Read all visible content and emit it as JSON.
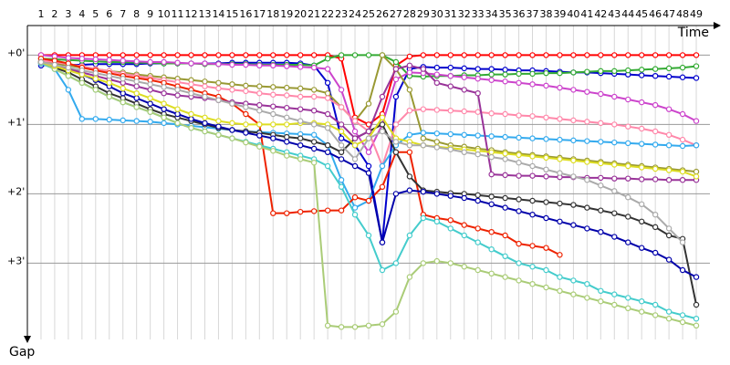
{
  "chart_data": {
    "type": "line",
    "xlabel": "Time",
    "ylabel": "Gap",
    "x": [
      1,
      2,
      3,
      4,
      5,
      6,
      7,
      8,
      9,
      10,
      11,
      12,
      13,
      14,
      15,
      16,
      17,
      18,
      19,
      20,
      21,
      22,
      23,
      24,
      25,
      26,
      27,
      28,
      29,
      30,
      31,
      32,
      33,
      34,
      35,
      36,
      37,
      38,
      39,
      40,
      41,
      42,
      43,
      44,
      45,
      46,
      47,
      48,
      49
    ],
    "xlim": [
      0,
      50
    ],
    "ylim": [
      -0.4,
      4.1
    ],
    "yticks": [
      {
        "value": 0,
        "label": "+0'"
      },
      {
        "value": 1,
        "label": "+1'"
      },
      {
        "value": 2,
        "label": "+2'"
      },
      {
        "value": 3,
        "label": "+3'"
      }
    ],
    "grid": true,
    "series": [
      {
        "color": "#ff0000",
        "values": [
          0,
          0,
          0,
          0,
          0,
          0,
          0,
          0,
          0,
          0,
          0,
          0,
          0,
          0,
          0,
          0,
          0,
          0,
          0,
          0,
          0,
          0,
          0.05,
          0.9,
          1.0,
          0.85,
          0.15,
          0.02,
          0,
          0,
          0,
          0,
          0,
          0,
          0,
          0,
          0,
          0,
          0,
          0,
          0,
          0,
          0,
          0,
          0,
          0,
          0,
          0,
          0
        ]
      },
      {
        "color": "#0000cc",
        "values": [
          0.15,
          0.14,
          0.14,
          0.14,
          0.13,
          0.13,
          0.13,
          0.13,
          0.12,
          0.12,
          0.12,
          0.12,
          0.12,
          0.12,
          0.11,
          0.11,
          0.11,
          0.11,
          0.11,
          0.12,
          0.15,
          0.4,
          1.2,
          1.3,
          1.6,
          2.7,
          0.6,
          0.2,
          0.17,
          0.18,
          0.18,
          0.19,
          0.2,
          0.2,
          0.21,
          0.22,
          0.22,
          0.23,
          0.24,
          0.25,
          0.25,
          0.26,
          0.27,
          0.28,
          0.29,
          0.3,
          0.31,
          0.32,
          0.33
        ]
      },
      {
        "color": "#33aa33",
        "values": [
          0.05,
          0.06,
          0.07,
          0.08,
          0.09,
          0.1,
          0.1,
          0.11,
          0.11,
          0.12,
          0.12,
          0.12,
          0.13,
          0.13,
          0.13,
          0.13,
          0.14,
          0.14,
          0.14,
          0.14,
          0.15,
          0.05,
          0,
          0,
          0,
          0,
          0.1,
          0.3,
          0.31,
          0.3,
          0.3,
          0.29,
          0.29,
          0.28,
          0.28,
          0.27,
          0.27,
          0.26,
          0.26,
          0.25,
          0.24,
          0.23,
          0.23,
          0.22,
          0.21,
          0.2,
          0.19,
          0.18,
          0.16
        ]
      },
      {
        "color": "#cc44cc",
        "values": [
          0,
          0.02,
          0.04,
          0.05,
          0.06,
          0.07,
          0.08,
          0.09,
          0.1,
          0.1,
          0.11,
          0.12,
          0.12,
          0.13,
          0.14,
          0.14,
          0.15,
          0.15,
          0.16,
          0.17,
          0.18,
          0.2,
          0.5,
          1.1,
          1.4,
          1.0,
          0.35,
          0.25,
          0.26,
          0.28,
          0.3,
          0.32,
          0.34,
          0.36,
          0.38,
          0.4,
          0.42,
          0.44,
          0.47,
          0.5,
          0.53,
          0.56,
          0.6,
          0.64,
          0.68,
          0.72,
          0.78,
          0.85,
          0.95
        ]
      },
      {
        "color": "#999933",
        "values": [
          0.1,
          0.12,
          0.15,
          0.18,
          0.2,
          0.23,
          0.25,
          0.28,
          0.3,
          0.32,
          0.34,
          0.36,
          0.38,
          0.4,
          0.42,
          0.44,
          0.45,
          0.46,
          0.47,
          0.48,
          0.5,
          0.55,
          0.75,
          0.95,
          0.7,
          0,
          0.2,
          0.5,
          1.2,
          1.25,
          1.3,
          1.32,
          1.35,
          1.37,
          1.4,
          1.42,
          1.44,
          1.46,
          1.48,
          1.5,
          1.52,
          1.54,
          1.56,
          1.58,
          1.6,
          1.62,
          1.64,
          1.66,
          1.68
        ]
      },
      {
        "color": "#ff88aa",
        "values": [
          0.08,
          0.1,
          0.13,
          0.16,
          0.2,
          0.23,
          0.27,
          0.3,
          0.33,
          0.36,
          0.39,
          0.42,
          0.45,
          0.48,
          0.5,
          0.52,
          0.55,
          0.57,
          0.58,
          0.6,
          0.6,
          0.62,
          0.75,
          0.95,
          1.1,
          1.6,
          1.0,
          0.8,
          0.78,
          0.79,
          0.8,
          0.81,
          0.82,
          0.84,
          0.85,
          0.87,
          0.88,
          0.9,
          0.92,
          0.94,
          0.96,
          0.98,
          1.0,
          1.03,
          1.06,
          1.1,
          1.15,
          1.22,
          1.3
        ]
      },
      {
        "color": "#33aaee",
        "values": [
          0.1,
          0.2,
          0.5,
          0.92,
          0.92,
          0.93,
          0.94,
          0.95,
          0.96,
          0.98,
          1.0,
          1.02,
          1.04,
          1.06,
          1.08,
          1.1,
          1.11,
          1.12,
          1.13,
          1.14,
          1.15,
          1.3,
          1.8,
          2.2,
          2.1,
          1.6,
          1.3,
          1.15,
          1.12,
          1.13,
          1.14,
          1.15,
          1.16,
          1.17,
          1.18,
          1.19,
          1.2,
          1.21,
          1.22,
          1.23,
          1.24,
          1.25,
          1.26,
          1.27,
          1.28,
          1.29,
          1.3,
          1.31,
          1.3
        ]
      },
      {
        "color": "#ee2200",
        "values": [
          0.05,
          0.08,
          0.12,
          0.18,
          0.22,
          0.26,
          0.3,
          0.33,
          0.36,
          0.4,
          0.45,
          0.5,
          0.55,
          0.6,
          0.7,
          0.85,
          1.0,
          2.28,
          2.28,
          2.26,
          2.25,
          2.24,
          2.24,
          2.05,
          2.1,
          1.9,
          1.4,
          1.4,
          2.3,
          2.35,
          2.38,
          2.45,
          2.5,
          2.55,
          2.6,
          2.72,
          2.75,
          2.78,
          2.88,
          null,
          null,
          null,
          null,
          null,
          null,
          null,
          null,
          null,
          null
        ]
      },
      {
        "color": "#333333",
        "values": [
          0.12,
          0.18,
          0.25,
          0.35,
          0.45,
          0.55,
          0.62,
          0.7,
          0.78,
          0.85,
          0.9,
          0.95,
          1.0,
          1.05,
          1.08,
          1.1,
          1.12,
          1.15,
          1.18,
          1.2,
          1.25,
          1.3,
          1.4,
          1.2,
          1.1,
          1.0,
          1.4,
          1.75,
          1.95,
          1.97,
          1.99,
          2.0,
          2.02,
          2.04,
          2.06,
          2.08,
          2.1,
          2.12,
          2.14,
          2.16,
          2.2,
          2.24,
          2.28,
          2.33,
          2.4,
          2.48,
          2.6,
          2.65,
          3.6
        ]
      },
      {
        "color": "#0000aa",
        "values": [
          0.1,
          0.15,
          0.2,
          0.28,
          0.36,
          0.45,
          0.55,
          0.62,
          0.7,
          0.78,
          0.85,
          0.92,
          0.98,
          1.03,
          1.08,
          1.12,
          1.16,
          1.2,
          1.25,
          1.3,
          1.35,
          1.4,
          1.5,
          1.6,
          1.7,
          2.7,
          2.0,
          1.95,
          1.97,
          2.0,
          2.03,
          2.06,
          2.1,
          2.15,
          2.2,
          2.25,
          2.3,
          2.35,
          2.4,
          2.45,
          2.5,
          2.55,
          2.62,
          2.7,
          2.78,
          2.85,
          2.95,
          3.1,
          3.2
        ]
      },
      {
        "color": "#44cccc",
        "values": [
          0.12,
          0.2,
          0.3,
          0.4,
          0.5,
          0.6,
          0.68,
          0.75,
          0.82,
          0.9,
          0.98,
          1.05,
          1.1,
          1.15,
          1.2,
          1.25,
          1.3,
          1.35,
          1.4,
          1.45,
          1.5,
          1.6,
          1.9,
          2.3,
          2.6,
          3.1,
          3.0,
          2.6,
          2.35,
          2.4,
          2.5,
          2.6,
          2.7,
          2.8,
          2.9,
          3.0,
          3.05,
          3.1,
          3.2,
          3.25,
          3.3,
          3.4,
          3.45,
          3.5,
          3.55,
          3.6,
          3.7,
          3.75,
          3.8
        ]
      },
      {
        "color": "#aacc77",
        "values": [
          0.1,
          0.2,
          0.3,
          0.4,
          0.5,
          0.6,
          0.68,
          0.75,
          0.82,
          0.9,
          0.98,
          1.05,
          1.1,
          1.15,
          1.2,
          1.26,
          1.32,
          1.38,
          1.45,
          1.5,
          1.55,
          3.9,
          3.92,
          3.92,
          3.9,
          3.88,
          3.7,
          3.2,
          3.0,
          2.97,
          3.0,
          3.05,
          3.1,
          3.15,
          3.2,
          3.25,
          3.3,
          3.35,
          3.4,
          3.45,
          3.5,
          3.55,
          3.6,
          3.65,
          3.7,
          3.75,
          3.8,
          3.85,
          3.9
        ]
      },
      {
        "color": "#993399",
        "values": [
          0.1,
          0.15,
          0.2,
          0.25,
          0.3,
          0.35,
          0.4,
          0.45,
          0.5,
          0.55,
          0.58,
          0.6,
          0.62,
          0.65,
          0.68,
          0.7,
          0.72,
          0.74,
          0.76,
          0.78,
          0.8,
          0.85,
          1.0,
          1.2,
          1.1,
          0.6,
          0.2,
          0.15,
          0.2,
          0.4,
          0.45,
          0.5,
          0.55,
          1.72,
          1.73,
          1.74,
          1.74,
          1.75,
          1.76,
          1.76,
          1.77,
          1.77,
          1.78,
          1.78,
          1.79,
          1.79,
          1.8,
          1.8,
          1.8
        ]
      },
      {
        "color": "#dddd22",
        "values": [
          0.1,
          0.16,
          0.22,
          0.28,
          0.34,
          0.4,
          0.48,
          0.55,
          0.62,
          0.7,
          0.78,
          0.85,
          0.9,
          0.95,
          0.98,
          1.0,
          1.0,
          1.0,
          1.0,
          0.98,
          0.98,
          1.0,
          1.1,
          1.3,
          1.2,
          0.9,
          1.2,
          1.25,
          1.3,
          1.32,
          1.34,
          1.36,
          1.38,
          1.4,
          1.42,
          1.44,
          1.46,
          1.48,
          1.5,
          1.52,
          1.54,
          1.56,
          1.58,
          1.6,
          1.62,
          1.64,
          1.66,
          1.68,
          1.75
        ]
      },
      {
        "color": "#aaaaaa",
        "values": [
          0.1,
          0.14,
          0.18,
          0.22,
          0.26,
          0.3,
          0.34,
          0.38,
          0.42,
          0.46,
          0.5,
          0.55,
          0.6,
          0.65,
          0.7,
          0.75,
          0.8,
          0.85,
          0.9,
          0.95,
          1.0,
          1.05,
          1.3,
          1.5,
          1.2,
          1.1,
          1.25,
          1.3,
          1.3,
          1.33,
          1.36,
          1.4,
          1.43,
          1.47,
          1.5,
          1.55,
          1.6,
          1.65,
          1.7,
          1.75,
          1.8,
          1.88,
          1.96,
          2.05,
          2.15,
          2.3,
          2.5,
          2.7,
          null
        ]
      }
    ]
  }
}
